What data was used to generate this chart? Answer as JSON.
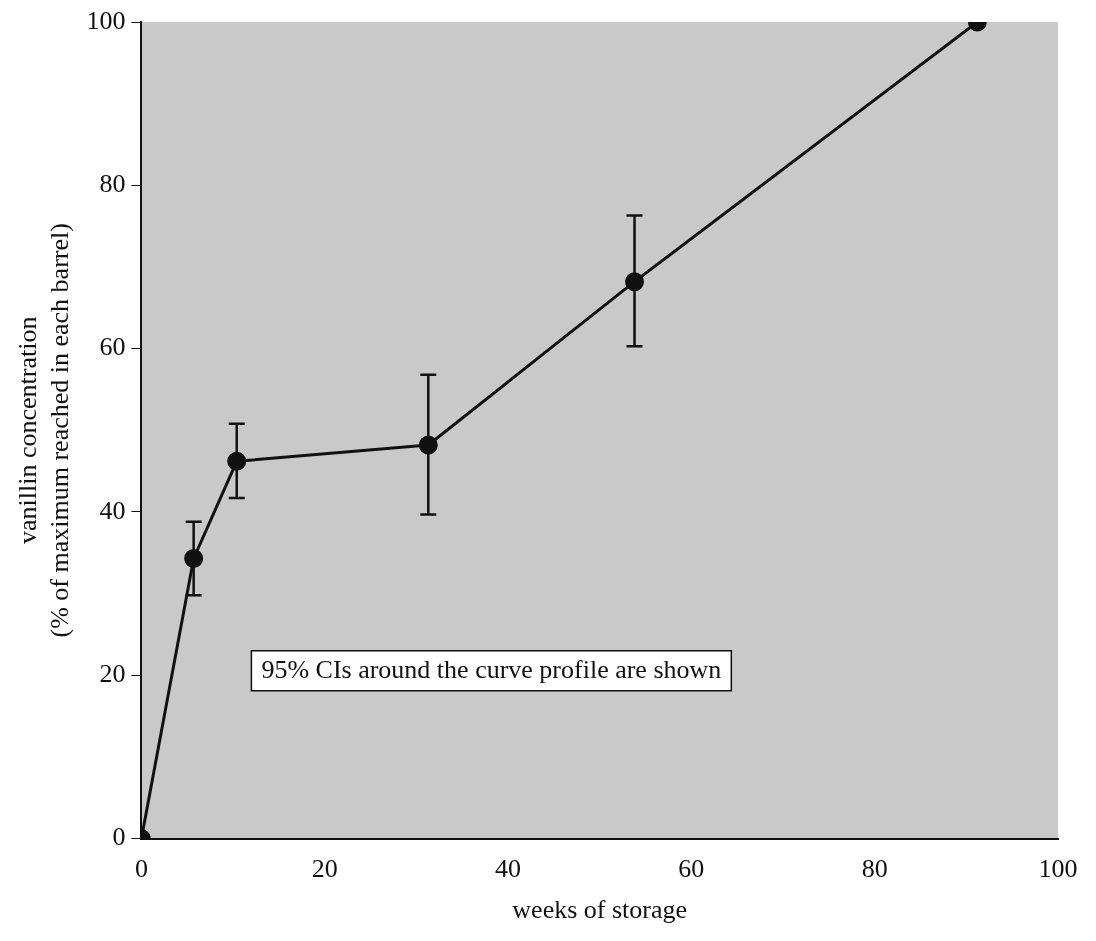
{
  "chart_data": {
    "type": "line",
    "xlabel": "weeks of storage",
    "ylabel": "vanillin concentration\n(% of maximum reached in each barrel)",
    "x": [
      0,
      5.7,
      10.4,
      31.3,
      53.8,
      91.2
    ],
    "values": [
      0,
      34.3,
      46.2,
      48.2,
      68.2,
      100
    ],
    "errors": [
      null,
      [
        29.8,
        38.8
      ],
      [
        41.7,
        50.8
      ],
      [
        39.7,
        56.8
      ],
      [
        60.3,
        76.3
      ],
      null
    ],
    "color": "#111111",
    "marker": "circle",
    "line_style": "solid",
    "xlim": [
      0,
      100
    ],
    "xticks": [
      0,
      20,
      40,
      60,
      80,
      100
    ],
    "ylim": [
      0,
      100
    ],
    "yticks": [
      0,
      20,
      40,
      60,
      80,
      100
    ],
    "grid": false,
    "legend": false,
    "annotations": [
      "95% CIs around the curve profile are shown"
    ]
  }
}
